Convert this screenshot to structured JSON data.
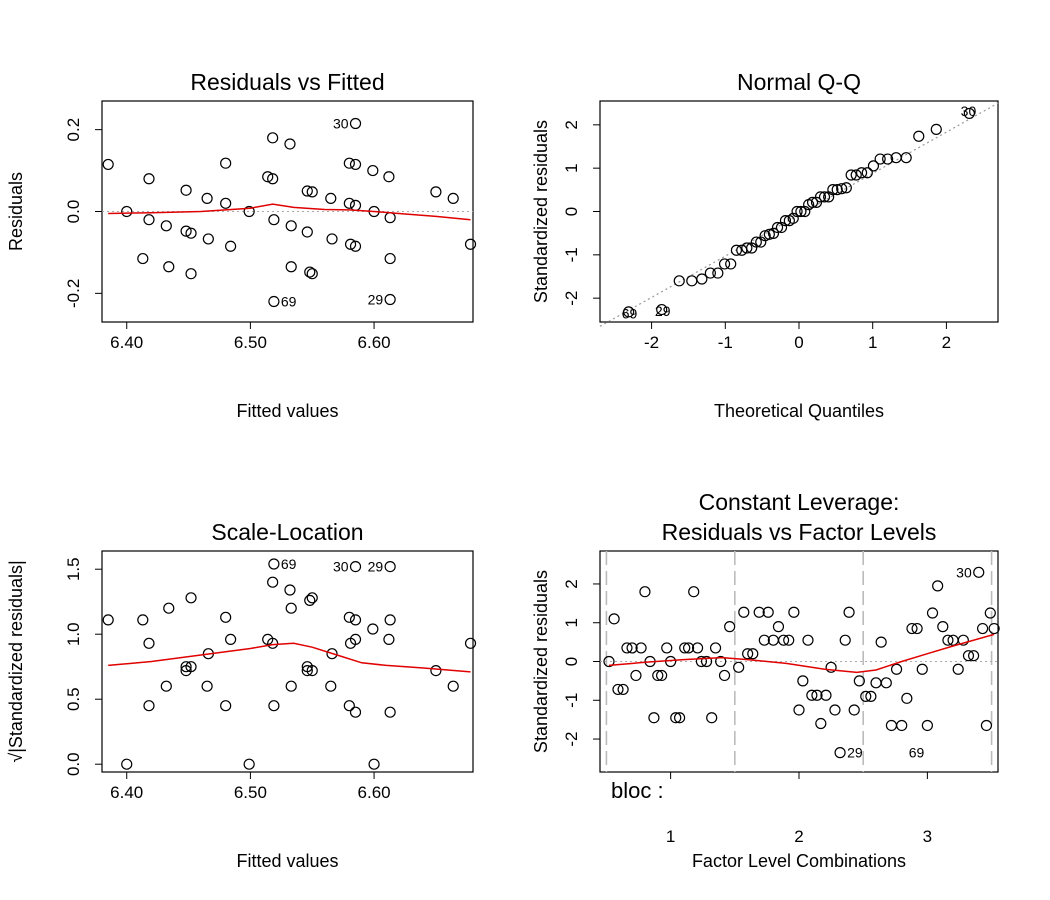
{
  "chart_data": [
    {
      "id": "p1",
      "type": "scatter",
      "title": "Residuals vs Fitted",
      "xlabel": "Fitted values",
      "ylabel": "Residuals",
      "xlim": [
        6.38,
        6.68
      ],
      "ylim": [
        -0.27,
        0.27
      ],
      "xticks": [
        {
          "v": 6.4,
          "label": "6.40"
        },
        {
          "v": 6.5,
          "label": "6.50"
        },
        {
          "v": 6.6,
          "label": "6.60"
        }
      ],
      "yticks": [
        {
          "v": -0.2,
          "label": "-0.2"
        },
        {
          "v": 0.0,
          "label": "0.0"
        },
        {
          "v": 0.2,
          "label": "0.2"
        }
      ],
      "refline": {
        "y": 0
      },
      "points": [
        [
          6.385,
          0.115
        ],
        [
          6.4,
          0.0
        ],
        [
          6.413,
          -0.115
        ],
        [
          6.418,
          0.08
        ],
        [
          6.418,
          -0.02
        ],
        [
          6.432,
          -0.035
        ],
        [
          6.434,
          -0.135
        ],
        [
          6.448,
          0.052
        ],
        [
          6.448,
          -0.048
        ],
        [
          6.452,
          -0.053
        ],
        [
          6.452,
          -0.152
        ],
        [
          6.465,
          0.032
        ],
        [
          6.466,
          -0.067
        ],
        [
          6.48,
          0.118
        ],
        [
          6.48,
          0.02
        ],
        [
          6.484,
          -0.085
        ],
        [
          6.499,
          0.0
        ],
        [
          6.514,
          0.085
        ],
        [
          6.518,
          0.08
        ],
        [
          6.518,
          0.18
        ],
        [
          6.519,
          -0.02
        ],
        [
          6.519,
          -0.22
        ],
        [
          6.532,
          0.165
        ],
        [
          6.533,
          -0.035
        ],
        [
          6.533,
          -0.135
        ],
        [
          6.546,
          0.05
        ],
        [
          6.546,
          -0.05
        ],
        [
          6.548,
          -0.148
        ],
        [
          6.55,
          0.048
        ],
        [
          6.55,
          -0.152
        ],
        [
          6.565,
          0.032
        ],
        [
          6.566,
          -0.067
        ],
        [
          6.58,
          0.118
        ],
        [
          6.58,
          0.02
        ],
        [
          6.581,
          -0.08
        ],
        [
          6.585,
          0.215
        ],
        [
          6.585,
          0.115
        ],
        [
          6.585,
          0.015
        ],
        [
          6.585,
          -0.085
        ],
        [
          6.599,
          0.1
        ],
        [
          6.6,
          0.0
        ],
        [
          6.612,
          0.085
        ],
        [
          6.613,
          -0.015
        ],
        [
          6.613,
          -0.115
        ],
        [
          6.613,
          -0.215
        ],
        [
          6.65,
          0.048
        ],
        [
          6.664,
          0.032
        ],
        [
          6.678,
          -0.08
        ]
      ],
      "smooth": [
        [
          6.385,
          -0.005
        ],
        [
          6.42,
          -0.003
        ],
        [
          6.46,
          0.0
        ],
        [
          6.5,
          0.008
        ],
        [
          6.518,
          0.018
        ],
        [
          6.535,
          0.01
        ],
        [
          6.56,
          0.005
        ],
        [
          6.58,
          0.004
        ],
        [
          6.6,
          0.0
        ],
        [
          6.62,
          -0.005
        ],
        [
          6.65,
          -0.012
        ],
        [
          6.678,
          -0.02
        ]
      ],
      "labels": [
        {
          "text": "30",
          "x": 6.585,
          "y": 0.215,
          "side": "left"
        },
        {
          "text": "69",
          "x": 6.519,
          "y": -0.22,
          "side": "right"
        },
        {
          "text": "29",
          "x": 6.613,
          "y": -0.215,
          "side": "left"
        }
      ]
    },
    {
      "id": "p2",
      "type": "scatter",
      "title": "Normal Q-Q",
      "xlabel": "Theoretical Quantiles",
      "ylabel": "Standardized residuals",
      "xlim": [
        -2.7,
        2.7
      ],
      "ylim": [
        -2.55,
        2.55
      ],
      "xticks": [
        {
          "v": -2,
          "label": "-2"
        },
        {
          "v": -1,
          "label": "-1"
        },
        {
          "v": 0,
          "label": "0"
        },
        {
          "v": 1,
          "label": "1"
        },
        {
          "v": 2,
          "label": "2"
        }
      ],
      "yticks": [
        {
          "v": -2,
          "label": "-2"
        },
        {
          "v": -1,
          "label": "-1"
        },
        {
          "v": 0,
          "label": "0"
        },
        {
          "v": 1,
          "label": "1"
        },
        {
          "v": 2,
          "label": "2"
        }
      ],
      "qqline": [
        [
          -2.7,
          -2.65
        ],
        [
          2.7,
          2.5
        ]
      ],
      "labels": [
        {
          "text": "30",
          "x": 2.5,
          "y": 2.32,
          "side": "left"
        },
        {
          "text": "69",
          "x": -2.5,
          "y": -2.35,
          "side": "right"
        },
        {
          "text": "29",
          "x": -2.05,
          "y": -2.3,
          "side": "right"
        }
      ]
    },
    {
      "id": "p3",
      "type": "scatter",
      "title": "Scale-Location",
      "xlabel": "Fitted values",
      "ylabel": "√|Standardized residuals|",
      "xlim": [
        6.38,
        6.68
      ],
      "ylim": [
        -0.06,
        1.64
      ],
      "xticks": [
        {
          "v": 6.4,
          "label": "6.40"
        },
        {
          "v": 6.5,
          "label": "6.50"
        },
        {
          "v": 6.6,
          "label": "6.60"
        }
      ],
      "yticks": [
        {
          "v": 0.0,
          "label": "0.0"
        },
        {
          "v": 0.5,
          "label": "0.5"
        },
        {
          "v": 1.0,
          "label": "1.0"
        },
        {
          "v": 1.5,
          "label": "1.5"
        }
      ],
      "points": [
        [
          6.385,
          1.11
        ],
        [
          6.4,
          0.0
        ],
        [
          6.413,
          1.11
        ],
        [
          6.418,
          0.93
        ],
        [
          6.418,
          0.45
        ],
        [
          6.432,
          0.6
        ],
        [
          6.434,
          1.2
        ],
        [
          6.448,
          0.75
        ],
        [
          6.448,
          0.72
        ],
        [
          6.452,
          0.75
        ],
        [
          6.452,
          1.28
        ],
        [
          6.465,
          0.6
        ],
        [
          6.466,
          0.85
        ],
        [
          6.48,
          1.13
        ],
        [
          6.48,
          0.45
        ],
        [
          6.484,
          0.96
        ],
        [
          6.499,
          0.0
        ],
        [
          6.514,
          0.96
        ],
        [
          6.518,
          0.93
        ],
        [
          6.518,
          1.4
        ],
        [
          6.519,
          0.45
        ],
        [
          6.519,
          1.54
        ],
        [
          6.532,
          1.34
        ],
        [
          6.533,
          0.6
        ],
        [
          6.533,
          1.2
        ],
        [
          6.546,
          0.75
        ],
        [
          6.546,
          0.72
        ],
        [
          6.548,
          1.26
        ],
        [
          6.55,
          0.72
        ],
        [
          6.55,
          1.28
        ],
        [
          6.565,
          0.6
        ],
        [
          6.566,
          0.85
        ],
        [
          6.58,
          1.13
        ],
        [
          6.58,
          0.45
        ],
        [
          6.581,
          0.93
        ],
        [
          6.585,
          1.52
        ],
        [
          6.585,
          1.11
        ],
        [
          6.585,
          0.4
        ],
        [
          6.585,
          0.96
        ],
        [
          6.599,
          1.04
        ],
        [
          6.6,
          0.0
        ],
        [
          6.612,
          0.96
        ],
        [
          6.613,
          0.4
        ],
        [
          6.613,
          1.11
        ],
        [
          6.613,
          1.52
        ],
        [
          6.65,
          0.72
        ],
        [
          6.664,
          0.6
        ],
        [
          6.678,
          0.93
        ]
      ],
      "smooth": [
        [
          6.385,
          0.76
        ],
        [
          6.42,
          0.79
        ],
        [
          6.46,
          0.84
        ],
        [
          6.5,
          0.89
        ],
        [
          6.518,
          0.92
        ],
        [
          6.535,
          0.93
        ],
        [
          6.55,
          0.9
        ],
        [
          6.57,
          0.84
        ],
        [
          6.59,
          0.78
        ],
        [
          6.61,
          0.76
        ],
        [
          6.64,
          0.74
        ],
        [
          6.678,
          0.71
        ]
      ],
      "labels": [
        {
          "text": "69",
          "x": 6.519,
          "y": 1.54,
          "side": "right"
        },
        {
          "text": "30",
          "x": 6.585,
          "y": 1.52,
          "side": "left"
        },
        {
          "text": "29",
          "x": 6.613,
          "y": 1.52,
          "side": "left"
        }
      ]
    },
    {
      "id": "p4",
      "type": "scatter",
      "title": "Constant Leverage:",
      "subtitle": "Residuals vs Factor Levels",
      "xlabel": "Factor Level Combinations",
      "ylabel": "Standardized residuals",
      "factor_label": "bloc :",
      "xlim": [
        0.45,
        3.55
      ],
      "ylim": [
        -2.85,
        2.85
      ],
      "xticks": [
        {
          "v": 1,
          "label": "1"
        },
        {
          "v": 2,
          "label": "2"
        },
        {
          "v": 3,
          "label": "3"
        }
      ],
      "yticks": [
        {
          "v": -2,
          "label": "-2"
        },
        {
          "v": -1,
          "label": "-1"
        },
        {
          "v": 0,
          "label": "0"
        },
        {
          "v": 1,
          "label": "1"
        },
        {
          "v": 2,
          "label": "2"
        }
      ],
      "vlines": [
        0.5,
        1.5,
        2.5,
        3.5
      ],
      "refline": {
        "y": 0
      },
      "points": [
        [
          0.52,
          0.0
        ],
        [
          0.56,
          1.1
        ],
        [
          0.59,
          -0.72
        ],
        [
          0.63,
          -0.72
        ],
        [
          0.66,
          0.35
        ],
        [
          0.7,
          0.35
        ],
        [
          0.73,
          -0.36
        ],
        [
          0.77,
          0.35
        ],
        [
          0.8,
          1.8
        ],
        [
          0.84,
          0.0
        ],
        [
          0.87,
          -1.45
        ],
        [
          0.9,
          -0.36
        ],
        [
          0.93,
          -0.36
        ],
        [
          0.97,
          0.35
        ],
        [
          1.0,
          0.0
        ],
        [
          1.04,
          -1.45
        ],
        [
          1.07,
          -1.45
        ],
        [
          1.11,
          0.35
        ],
        [
          1.14,
          0.35
        ],
        [
          1.18,
          1.8
        ],
        [
          1.21,
          0.35
        ],
        [
          1.24,
          0.0
        ],
        [
          1.28,
          0.0
        ],
        [
          1.32,
          -1.45
        ],
        [
          1.35,
          0.35
        ],
        [
          1.39,
          0.0
        ],
        [
          1.42,
          -0.36
        ],
        [
          1.46,
          0.9
        ],
        [
          1.53,
          -0.15
        ],
        [
          1.57,
          1.27
        ],
        [
          1.6,
          0.2
        ],
        [
          1.64,
          0.2
        ],
        [
          1.69,
          1.27
        ],
        [
          1.73,
          0.55
        ],
        [
          1.76,
          1.27
        ],
        [
          1.8,
          0.55
        ],
        [
          1.84,
          0.9
        ],
        [
          1.88,
          0.55
        ],
        [
          1.92,
          0.55
        ],
        [
          1.96,
          1.27
        ],
        [
          2.0,
          -1.25
        ],
        [
          2.03,
          -0.5
        ],
        [
          2.07,
          0.55
        ],
        [
          2.1,
          -0.87
        ],
        [
          2.14,
          -0.87
        ],
        [
          2.17,
          -1.6
        ],
        [
          2.21,
          -0.87
        ],
        [
          2.25,
          -0.15
        ],
        [
          2.28,
          -1.25
        ],
        [
          2.32,
          -2.35
        ],
        [
          2.36,
          0.55
        ],
        [
          2.39,
          1.27
        ],
        [
          2.43,
          -1.25
        ],
        [
          2.47,
          -0.5
        ],
        [
          2.52,
          -0.9
        ],
        [
          2.56,
          -0.9
        ],
        [
          2.6,
          -0.55
        ],
        [
          2.64,
          0.5
        ],
        [
          2.68,
          -0.55
        ],
        [
          2.72,
          -1.65
        ],
        [
          2.76,
          -0.2
        ],
        [
          2.8,
          -1.65
        ],
        [
          2.84,
          -0.95
        ],
        [
          2.88,
          0.85
        ],
        [
          2.92,
          0.85
        ],
        [
          2.96,
          -0.2
        ],
        [
          3.0,
          -1.65
        ],
        [
          3.04,
          1.25
        ],
        [
          3.08,
          1.95
        ],
        [
          3.12,
          0.9
        ],
        [
          3.16,
          0.55
        ],
        [
          3.2,
          0.55
        ],
        [
          3.24,
          -0.2
        ],
        [
          3.28,
          0.55
        ],
        [
          3.32,
          0.15
        ],
        [
          3.36,
          0.15
        ],
        [
          3.4,
          2.3
        ],
        [
          3.43,
          0.85
        ],
        [
          3.46,
          -1.65
        ],
        [
          3.49,
          1.25
        ],
        [
          3.52,
          0.85
        ]
      ],
      "smooth": [
        [
          0.52,
          -0.1
        ],
        [
          0.8,
          -0.02
        ],
        [
          1.1,
          0.05
        ],
        [
          1.4,
          0.1
        ],
        [
          1.6,
          0.05
        ],
        [
          1.9,
          -0.05
        ],
        [
          2.2,
          -0.2
        ],
        [
          2.45,
          -0.28
        ],
        [
          2.6,
          -0.22
        ],
        [
          2.8,
          0.0
        ],
        [
          3.0,
          0.2
        ],
        [
          3.2,
          0.4
        ],
        [
          3.52,
          0.7
        ]
      ],
      "labels": [
        {
          "text": "30",
          "x": 3.4,
          "y": 2.3,
          "side": "left"
        },
        {
          "text": "29",
          "x": 2.32,
          "y": -2.35,
          "side": "right"
        },
        {
          "text": "69",
          "x": 2.8,
          "y": -2.35,
          "side": "right"
        }
      ]
    }
  ]
}
